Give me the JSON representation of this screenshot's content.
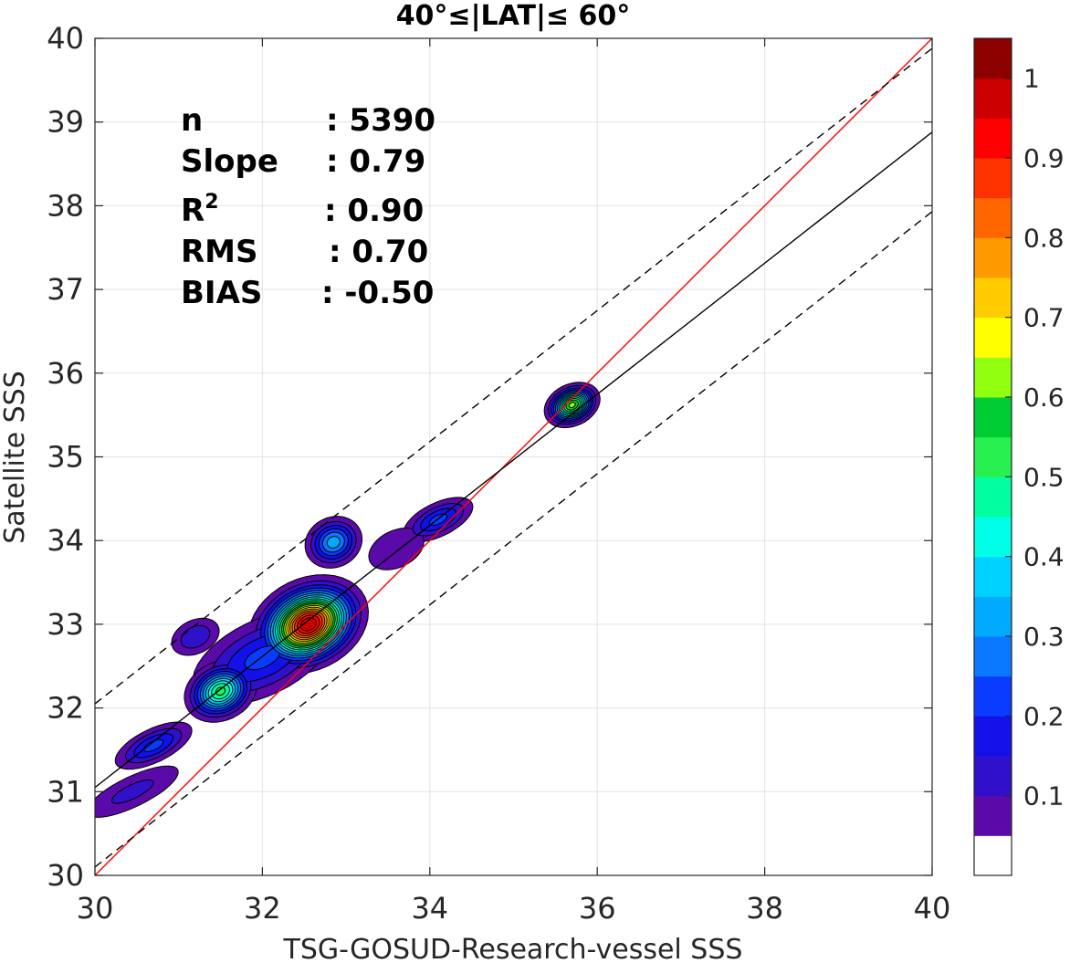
{
  "chart_data": {
    "type": "heatmap",
    "title": "40°≤|LAT|≤ 60°",
    "xlabel": "TSG-GOSUD-Research-vessel SSS",
    "ylabel": "Satellite SSS",
    "xlim": [
      30,
      40
    ],
    "ylim": [
      30,
      40
    ],
    "x_ticks": [
      "30",
      "32",
      "34",
      "36",
      "38",
      "40"
    ],
    "y_ticks": [
      "30",
      "31",
      "32",
      "33",
      "34",
      "35",
      "36",
      "37",
      "38",
      "39",
      "40"
    ],
    "grid": true,
    "stats": [
      {
        "label": "n",
        "value": ": 5390"
      },
      {
        "label": "Slope",
        "value": ": 0.79"
      },
      {
        "label": "R",
        "sup": "2",
        "value": ": 0.90"
      },
      {
        "label": "RMS",
        "value": ": 0.70"
      },
      {
        "label": "BIAS",
        "value": ": -0.50"
      }
    ],
    "lines": [
      {
        "name": "1:1",
        "color": "#ff0000",
        "style": "solid",
        "points": [
          [
            30,
            30
          ],
          [
            40,
            40
          ]
        ]
      },
      {
        "name": "fit",
        "color": "#000000",
        "style": "solid",
        "points": [
          [
            30,
            31.05
          ],
          [
            40,
            38.88
          ]
        ]
      },
      {
        "name": "upper",
        "color": "#000000",
        "style": "dashed",
        "points": [
          [
            30,
            32.05
          ],
          [
            40,
            39.88
          ]
        ]
      },
      {
        "name": "lower",
        "color": "#000000",
        "style": "dashed",
        "points": [
          [
            30,
            30.1
          ],
          [
            40,
            37.93
          ]
        ]
      }
    ],
    "density_blobs": [
      {
        "cx": 32.55,
        "cy": 33.0,
        "rx": 0.75,
        "ry": 0.55,
        "peak": 1.0
      },
      {
        "cx": 32.0,
        "cy": 32.6,
        "rx": 0.9,
        "ry": 0.45,
        "peak": 0.22
      },
      {
        "cx": 31.5,
        "cy": 32.2,
        "rx": 0.45,
        "ry": 0.35,
        "peak": 0.52
      },
      {
        "cx": 31.2,
        "cy": 32.85,
        "rx": 0.3,
        "ry": 0.2,
        "peak": 0.15
      },
      {
        "cx": 30.7,
        "cy": 31.55,
        "rx": 0.5,
        "ry": 0.2,
        "peak": 0.22
      },
      {
        "cx": 30.45,
        "cy": 31.0,
        "rx": 0.6,
        "ry": 0.18,
        "peak": 0.12
      },
      {
        "cx": 32.85,
        "cy": 33.98,
        "rx": 0.35,
        "ry": 0.3,
        "peak": 0.33
      },
      {
        "cx": 34.1,
        "cy": 34.25,
        "rx": 0.45,
        "ry": 0.2,
        "peak": 0.22
      },
      {
        "cx": 33.6,
        "cy": 33.9,
        "rx": 0.35,
        "ry": 0.22,
        "peak": 0.1
      },
      {
        "cx": 35.7,
        "cy": 35.62,
        "rx": 0.35,
        "ry": 0.25,
        "peak": 0.62
      }
    ],
    "colorbar": {
      "ticks": [
        "0.1",
        "0.2",
        "0.3",
        "0.4",
        "0.5",
        "0.6",
        "0.7",
        "0.8",
        "0.9",
        "1"
      ],
      "levels": [
        0.05,
        0.1,
        0.15,
        0.2,
        0.25,
        0.3,
        0.35,
        0.4,
        0.45,
        0.5,
        0.55,
        0.6,
        0.65,
        0.7,
        0.75,
        0.8,
        0.85,
        0.9,
        0.95,
        1.0
      ],
      "colors": [
        "#ffffff",
        "#5a0aa8",
        "#3010c8",
        "#1410e8",
        "#0a3cff",
        "#0a78ff",
        "#00aaff",
        "#00d2ff",
        "#00ffe8",
        "#00ffa0",
        "#28f050",
        "#00cc33",
        "#90ff10",
        "#ffff00",
        "#ffcc00",
        "#ff9900",
        "#ff6600",
        "#ff3300",
        "#ff0000",
        "#cc0000",
        "#8c0000"
      ]
    }
  }
}
